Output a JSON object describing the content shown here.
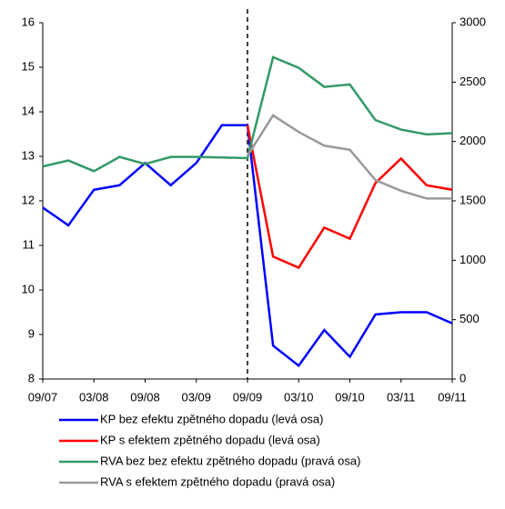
{
  "chart_data": {
    "type": "line",
    "categories": [
      "09/07",
      null,
      "03/08",
      null,
      "09/08",
      null,
      "03/09",
      null,
      "09/09",
      null,
      "03/10",
      null,
      "09/10",
      null,
      "03/11",
      null,
      "09/11"
    ],
    "ylim": [
      8,
      16
    ],
    "yticks": [
      8,
      9,
      10,
      11,
      12,
      13,
      14,
      15,
      16
    ],
    "y2lim": [
      0,
      3000
    ],
    "y2ticks": [
      0,
      500,
      1000,
      1500,
      2000,
      2500,
      3000
    ],
    "series": [
      {
        "name": "KP bez efektu zpětného dopadu (levá osa)",
        "color": "#0000ff",
        "values": [
          11.85,
          11.45,
          12.25,
          12.35,
          12.85,
          12.35,
          12.85,
          13.7,
          13.7,
          8.75,
          8.3,
          9.1,
          8.5,
          9.45,
          9.5,
          9.5,
          9.25
        ]
      },
      {
        "name": "KP s efektem zpětného dopadu (levá osa)",
        "color": "#ff0000",
        "values": [
          null,
          null,
          null,
          null,
          null,
          null,
          null,
          null,
          13.7,
          10.75,
          10.5,
          11.4,
          11.15,
          12.4,
          12.95,
          12.35,
          12.25
        ]
      },
      {
        "name": "RVA bez bez efektu zpětného dopadu (pravá osa)",
        "color": "#339966",
        "axis": "y2",
        "values": [
          1790,
          1840,
          1750,
          1870,
          1810,
          1870,
          1870,
          1865,
          1860,
          2710,
          2620,
          2460,
          2480,
          2180,
          2100,
          2060,
          2070
        ]
      },
      {
        "name": "RVA s efektem zpětného dopadu (pravá osa)",
        "color": "#999999",
        "axis": "y2",
        "values": [
          null,
          null,
          null,
          null,
          null,
          null,
          null,
          null,
          1880,
          2220,
          2080,
          1965,
          1930,
          1675,
          1585,
          1520,
          1520
        ]
      }
    ]
  }
}
